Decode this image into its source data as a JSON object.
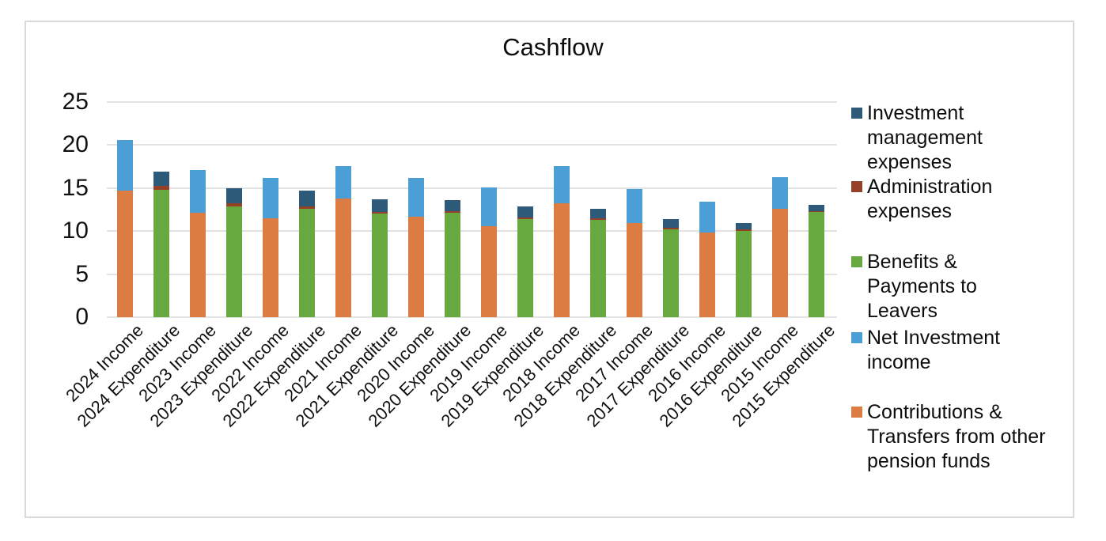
{
  "chart_data": {
    "type": "bar",
    "stacked": true,
    "title": "Cashflow",
    "xlabel": "",
    "ylabel": "",
    "ylim": [
      0,
      25
    ],
    "yticks": [
      0,
      5,
      10,
      15,
      20,
      25
    ],
    "grid": "horizontal",
    "gridline_color": "#E2E2E2",
    "legend_position": "right",
    "categories": [
      "2024 Income",
      "2024 Expenditure",
      "2023 Income",
      "2023 Expenditure",
      "2022 Income",
      "2022 Expenditure",
      "2021 Income",
      "2021 Expenditure",
      "2020 Income",
      "2020 Expenditure",
      "2019 Income",
      "2019 Expenditure",
      "2018 Income",
      "2018 Expenditure",
      "2017 Income",
      "2017 Expenditure",
      "2016 Income",
      "2016 Expenditure",
      "2015 Income",
      "2015 Expenditure"
    ],
    "series": [
      {
        "name": "Investment management expenses",
        "legend_lines": [
          "Investment",
          "management",
          "expenses"
        ],
        "color": "#2D5A78",
        "values": [
          0,
          1.65,
          0,
          1.75,
          0,
          1.85,
          0,
          1.45,
          0,
          1.3,
          0,
          1.25,
          0,
          1.1,
          0,
          1.0,
          0,
          0.7,
          0,
          0.7
        ]
      },
      {
        "name": "Administration expenses",
        "legend_lines": [
          "Administration",
          "expenses"
        ],
        "color": "#944128",
        "values": [
          0,
          0.45,
          0,
          0.35,
          0,
          0.25,
          0,
          0.2,
          0,
          0.2,
          0,
          0.2,
          0,
          0.2,
          0,
          0.2,
          0,
          0.2,
          0,
          0.15
        ]
      },
      {
        "name": "Benefits & Payments to Leavers",
        "legend_lines": [
          "Benefits &",
          "Payments to",
          "Leavers"
        ],
        "color": "#68A93F",
        "values": [
          0,
          14.8,
          0,
          12.9,
          0,
          12.6,
          0,
          12.0,
          0,
          12.1,
          0,
          11.4,
          0,
          11.3,
          0,
          10.2,
          0,
          10.0,
          0,
          12.2
        ]
      },
      {
        "name": "Net Investment income",
        "legend_lines": [
          "Net Investment",
          "income"
        ],
        "color": "#4C9FD6",
        "values": [
          5.9,
          0,
          5.0,
          0,
          4.7,
          0,
          3.8,
          0,
          4.5,
          0,
          4.5,
          0,
          4.4,
          0,
          4.0,
          0,
          3.6,
          0,
          3.7,
          0
        ]
      },
      {
        "name": "Contributions & Transfers from other pension funds",
        "legend_lines": [
          "Contributions &",
          "Transfers from other",
          "pension funds"
        ],
        "color": "#DD7C42",
        "values": [
          14.7,
          0,
          12.1,
          0,
          11.5,
          0,
          13.8,
          0,
          11.7,
          0,
          10.6,
          0,
          13.2,
          0,
          10.9,
          0,
          9.8,
          0,
          12.6,
          0
        ]
      }
    ],
    "stack_order": [
      4,
      2,
      1,
      0,
      3
    ],
    "bar_totals": [
      20.6,
      16.9,
      17.1,
      15.0,
      16.2,
      14.7,
      17.6,
      13.65,
      16.2,
      13.6,
      15.1,
      12.85,
      17.6,
      12.6,
      14.9,
      11.4,
      13.4,
      10.9,
      16.3,
      13.05
    ]
  }
}
